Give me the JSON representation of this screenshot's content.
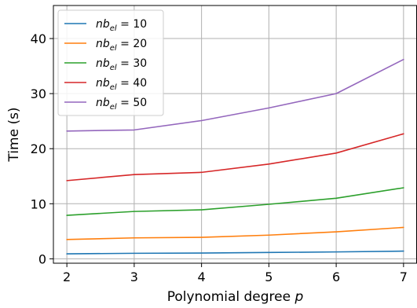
{
  "chart_data": {
    "type": "line",
    "title": "",
    "xlabel_prefix": "Polynomial degree ",
    "xlabel_var": "p",
    "ylabel": "Time (s)",
    "x": [
      2,
      3,
      4,
      5,
      6,
      7
    ],
    "xlim": [
      1.8,
      7.2
    ],
    "ylim": [
      -0.8,
      46
    ],
    "xticks": [
      2,
      3,
      4,
      5,
      6,
      7
    ],
    "yticks": [
      0,
      10,
      20,
      30,
      40
    ],
    "grid": true,
    "legend_position": "top-left",
    "legend_label_var": "nb",
    "legend_label_sub": "el",
    "series": [
      {
        "name": " = 10",
        "color": "#1f77b4",
        "values": [
          0.9,
          1.0,
          1.05,
          1.15,
          1.25,
          1.4
        ]
      },
      {
        "name": " = 20",
        "color": "#ff7f0e",
        "values": [
          3.5,
          3.8,
          3.9,
          4.3,
          4.9,
          5.7
        ]
      },
      {
        "name": " = 30",
        "color": "#2ca02c",
        "values": [
          7.9,
          8.6,
          8.9,
          9.9,
          11.0,
          12.9
        ]
      },
      {
        "name": " = 40",
        "color": "#d62728",
        "values": [
          14.2,
          15.3,
          15.7,
          17.2,
          19.2,
          22.7
        ]
      },
      {
        "name": " = 50",
        "color": "#9467bd",
        "values": [
          23.2,
          23.4,
          25.1,
          27.4,
          30.0,
          36.2
        ]
      }
    ]
  }
}
